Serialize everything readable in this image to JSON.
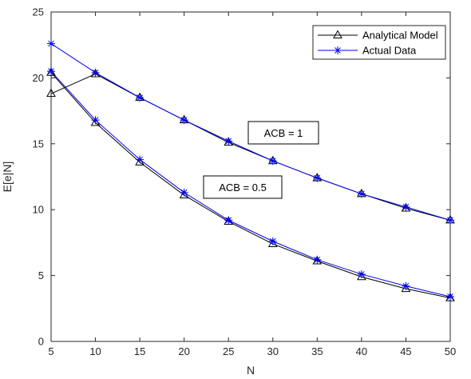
{
  "chart_data": {
    "type": "line",
    "xlabel": "N",
    "ylabel": "E[e|N]",
    "xlim": [
      5,
      50
    ],
    "ylim": [
      0,
      25
    ],
    "xticks": [
      "5",
      "10",
      "15",
      "20",
      "25",
      "30",
      "35",
      "40",
      "45",
      "50"
    ],
    "yticks": [
      "0",
      "5",
      "10",
      "15",
      "20",
      "25"
    ],
    "grid": false,
    "legend_position": "top-right",
    "legend": [
      {
        "label": "Analytical Model",
        "color": "#000000",
        "marker": "triangle"
      },
      {
        "label": "Actual Data",
        "color": "#0000ff",
        "marker": "asterisk"
      }
    ],
    "series": [
      {
        "group": "ACB = 1",
        "name": "Analytical Model",
        "color": "#000000",
        "marker": "triangle",
        "x": [
          5,
          10,
          15,
          20,
          25,
          30,
          35,
          40,
          45,
          50
        ],
        "y": [
          18.8,
          20.3,
          18.5,
          16.8,
          15.1,
          13.7,
          12.4,
          11.2,
          10.1,
          9.2
        ]
      },
      {
        "group": "ACB = 1",
        "name": "Actual Data",
        "color": "#0000ff",
        "marker": "asterisk",
        "x": [
          5,
          10,
          15,
          20,
          25,
          30,
          35,
          40,
          45,
          50
        ],
        "y": [
          22.6,
          20.4,
          18.5,
          16.8,
          15.2,
          13.7,
          12.4,
          11.2,
          10.2,
          9.2
        ]
      },
      {
        "group": "ACB = 0.5",
        "name": "Analytical Model",
        "color": "#000000",
        "marker": "triangle",
        "x": [
          5,
          10,
          15,
          20,
          25,
          30,
          35,
          40,
          45,
          50
        ],
        "y": [
          20.4,
          16.6,
          13.6,
          11.1,
          9.1,
          7.4,
          6.1,
          4.9,
          4.0,
          3.3
        ]
      },
      {
        "group": "ACB = 0.5",
        "name": "Actual Data",
        "color": "#0000ff",
        "marker": "asterisk",
        "x": [
          5,
          10,
          15,
          20,
          25,
          30,
          35,
          40,
          45,
          50
        ],
        "y": [
          20.5,
          16.8,
          13.8,
          11.3,
          9.2,
          7.6,
          6.2,
          5.1,
          4.2,
          3.4
        ]
      }
    ],
    "annotations": [
      {
        "text": "ACB = 1"
      },
      {
        "text": "ACB = 0.5"
      }
    ]
  }
}
